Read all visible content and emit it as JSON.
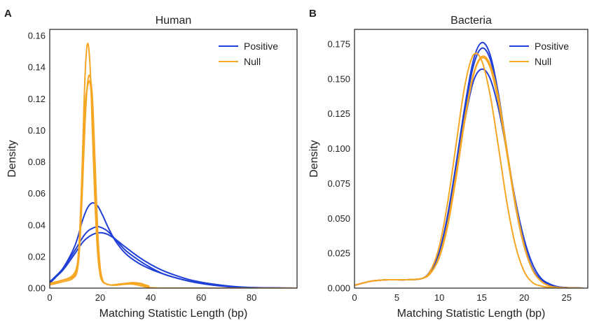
{
  "colors": {
    "positive": "#1f3fd6",
    "null": "#f5a623",
    "axes": "#222222"
  },
  "chart_data": [
    {
      "type": "line",
      "panel_letter": "A",
      "title": "Human",
      "xlabel": "Matching Statistic Length (bp)",
      "ylabel": "Density",
      "xlim": [
        0,
        98
      ],
      "ylim": [
        0,
        0.164
      ],
      "xticks": [
        0,
        20,
        40,
        60,
        80
      ],
      "yticks": [
        0.0,
        0.02,
        0.04,
        0.06,
        0.08,
        0.1,
        0.12,
        0.14,
        0.16
      ],
      "ytick_labels": [
        "0.00",
        "0.02",
        "0.04",
        "0.06",
        "0.08",
        "0.10",
        "0.12",
        "0.14",
        "0.16"
      ],
      "grid": false,
      "legend": {
        "position": "top-right",
        "entries": [
          "Positive",
          "Null"
        ]
      },
      "series": [
        {
          "name": "Positive",
          "color": "#1f3fd6",
          "x": [
            0,
            5,
            10,
            13,
            15,
            17,
            19,
            21,
            23,
            26,
            30,
            35,
            40,
            45,
            50,
            55,
            60,
            65,
            70,
            75,
            80,
            90,
            98
          ],
          "y": [
            0.003,
            0.012,
            0.027,
            0.043,
            0.051,
            0.054,
            0.052,
            0.046,
            0.039,
            0.03,
            0.022,
            0.016,
            0.012,
            0.009,
            0.0065,
            0.0045,
            0.003,
            0.0018,
            0.001,
            0.0005,
            0.0002,
            0.0001,
            0.0
          ]
        },
        {
          "name": "Positive",
          "color": "#1f3fd6",
          "x": [
            0,
            5,
            10,
            13,
            15,
            17,
            19,
            21,
            23,
            26,
            30,
            35,
            40,
            45,
            50,
            55,
            60,
            65,
            70,
            75,
            80,
            90,
            98
          ],
          "y": [
            0.004,
            0.012,
            0.024,
            0.032,
            0.036,
            0.038,
            0.039,
            0.038,
            0.036,
            0.031,
            0.024,
            0.018,
            0.013,
            0.009,
            0.0065,
            0.0045,
            0.003,
            0.002,
            0.0012,
            0.0006,
            0.0003,
            0.0001,
            0.0
          ]
        },
        {
          "name": "Positive",
          "color": "#1f3fd6",
          "x": [
            0,
            5,
            10,
            13,
            15,
            17,
            19,
            21,
            23,
            26,
            30,
            35,
            40,
            45,
            50,
            55,
            60,
            65,
            70,
            75,
            80,
            90,
            98
          ],
          "y": [
            0.004,
            0.011,
            0.022,
            0.029,
            0.032,
            0.034,
            0.035,
            0.035,
            0.034,
            0.031,
            0.026,
            0.02,
            0.015,
            0.011,
            0.008,
            0.0055,
            0.0038,
            0.0025,
            0.0015,
            0.0008,
            0.0004,
            0.0001,
            0.0
          ]
        },
        {
          "name": "Null",
          "color": "#f5a623",
          "x": [
            0,
            5,
            9,
            11,
            12,
            13,
            14,
            15,
            16,
            17,
            18,
            19,
            20,
            21,
            22,
            24,
            27,
            30,
            33,
            36,
            39,
            45,
            98
          ],
          "y": [
            0.002,
            0.004,
            0.006,
            0.012,
            0.035,
            0.085,
            0.135,
            0.155,
            0.14,
            0.095,
            0.052,
            0.022,
            0.008,
            0.004,
            0.003,
            0.002,
            0.002,
            0.0025,
            0.0025,
            0.0015,
            0.0005,
            0.0,
            0.0
          ]
        },
        {
          "name": "Null",
          "color": "#f5a623",
          "x": [
            0,
            5,
            9,
            11,
            12,
            13,
            14,
            15,
            16,
            17,
            18,
            19,
            20,
            21,
            22,
            24,
            27,
            30,
            33,
            36,
            39,
            45,
            98
          ],
          "y": [
            0.003,
            0.005,
            0.008,
            0.016,
            0.04,
            0.08,
            0.115,
            0.128,
            0.13,
            0.11,
            0.07,
            0.032,
            0.012,
            0.005,
            0.003,
            0.002,
            0.002,
            0.003,
            0.003,
            0.0025,
            0.001,
            0.0,
            0.0
          ]
        },
        {
          "name": "Null",
          "color": "#f5a623",
          "x": [
            0,
            5,
            9,
            11,
            12,
            13,
            14,
            15,
            16,
            17,
            18,
            19,
            20,
            21,
            22,
            24,
            27,
            30,
            33,
            36,
            39,
            45,
            98
          ],
          "y": [
            0.003,
            0.005,
            0.007,
            0.013,
            0.03,
            0.065,
            0.105,
            0.13,
            0.134,
            0.118,
            0.078,
            0.036,
            0.013,
            0.005,
            0.003,
            0.002,
            0.0025,
            0.003,
            0.0035,
            0.003,
            0.0015,
            0.0,
            0.0
          ]
        }
      ]
    },
    {
      "type": "line",
      "panel_letter": "B",
      "title": "Bacteria",
      "xlabel": "Matching Statistic Length (bp)",
      "ylabel": "Density",
      "xlim": [
        0,
        27.5
      ],
      "ylim": [
        0,
        0.1855
      ],
      "xticks": [
        0,
        5,
        10,
        15,
        20,
        25
      ],
      "yticks": [
        0.0,
        0.025,
        0.05,
        0.075,
        0.1,
        0.125,
        0.15,
        0.175
      ],
      "ytick_labels": [
        "0.000",
        "0.025",
        "0.050",
        "0.075",
        "0.100",
        "0.125",
        "0.150",
        "0.175"
      ],
      "grid": false,
      "legend": {
        "position": "top-right",
        "entries": [
          "Positive",
          "Null"
        ]
      },
      "series": [
        {
          "name": "Positive",
          "color": "#1f3fd6",
          "x": [
            0,
            2,
            4,
            6,
            8,
            9,
            10,
            11,
            12,
            13,
            14,
            15,
            16,
            17,
            18,
            19,
            20,
            21,
            22,
            23,
            24,
            25,
            27
          ],
          "y": [
            0.002,
            0.005,
            0.006,
            0.006,
            0.007,
            0.012,
            0.026,
            0.053,
            0.09,
            0.13,
            0.163,
            0.176,
            0.167,
            0.138,
            0.097,
            0.058,
            0.03,
            0.013,
            0.005,
            0.002,
            0.0008,
            0.0003,
            0.0
          ]
        },
        {
          "name": "Positive",
          "color": "#1f3fd6",
          "x": [
            0,
            2,
            4,
            6,
            8,
            9,
            10,
            11,
            12,
            13,
            14,
            15,
            16,
            17,
            18,
            19,
            20,
            21,
            22,
            23,
            24,
            25,
            27
          ],
          "y": [
            0.002,
            0.005,
            0.006,
            0.006,
            0.007,
            0.012,
            0.025,
            0.051,
            0.087,
            0.127,
            0.159,
            0.172,
            0.164,
            0.137,
            0.098,
            0.06,
            0.032,
            0.014,
            0.006,
            0.002,
            0.0009,
            0.0003,
            0.0
          ]
        },
        {
          "name": "Positive",
          "color": "#1f3fd6",
          "x": [
            0,
            2,
            4,
            6,
            8,
            9,
            10,
            11,
            12,
            13,
            14,
            15,
            16,
            17,
            18,
            19,
            20,
            21,
            22,
            23,
            24,
            25,
            27
          ],
          "y": [
            0.002,
            0.005,
            0.006,
            0.006,
            0.007,
            0.013,
            0.026,
            0.05,
            0.084,
            0.12,
            0.148,
            0.157,
            0.15,
            0.128,
            0.096,
            0.062,
            0.035,
            0.017,
            0.007,
            0.003,
            0.001,
            0.0004,
            0.0
          ]
        },
        {
          "name": "Null",
          "color": "#f5a623",
          "x": [
            0,
            2,
            4,
            6,
            8,
            9,
            10,
            11,
            12,
            13,
            14,
            15,
            16,
            17,
            18,
            19,
            20,
            21,
            22,
            23,
            24,
            25,
            27
          ],
          "y": [
            0.002,
            0.005,
            0.006,
            0.006,
            0.007,
            0.013,
            0.03,
            0.062,
            0.104,
            0.145,
            0.167,
            0.163,
            0.138,
            0.1,
            0.06,
            0.03,
            0.012,
            0.004,
            0.0015,
            0.0005,
            0.0002,
            0.0,
            0.0
          ]
        },
        {
          "name": "Null",
          "color": "#f5a623",
          "x": [
            0,
            2,
            4,
            6,
            8,
            9,
            10,
            11,
            12,
            13,
            14,
            15,
            16,
            17,
            18,
            19,
            20,
            21,
            22,
            23,
            24,
            25,
            27
          ],
          "y": [
            0.002,
            0.005,
            0.006,
            0.006,
            0.007,
            0.011,
            0.022,
            0.045,
            0.08,
            0.12,
            0.152,
            0.165,
            0.158,
            0.132,
            0.095,
            0.058,
            0.03,
            0.013,
            0.005,
            0.0015,
            0.0005,
            0.0002,
            0.0
          ]
        },
        {
          "name": "Null",
          "color": "#f5a623",
          "x": [
            0,
            2,
            4,
            6,
            8,
            9,
            10,
            11,
            12,
            13,
            14,
            15,
            16,
            17,
            18,
            19,
            20,
            21,
            22,
            23,
            24,
            25,
            27
          ],
          "y": [
            0.002,
            0.005,
            0.006,
            0.006,
            0.007,
            0.011,
            0.023,
            0.047,
            0.083,
            0.122,
            0.153,
            0.166,
            0.16,
            0.136,
            0.098,
            0.06,
            0.031,
            0.013,
            0.005,
            0.0015,
            0.0005,
            0.0002,
            0.0
          ]
        }
      ]
    }
  ]
}
